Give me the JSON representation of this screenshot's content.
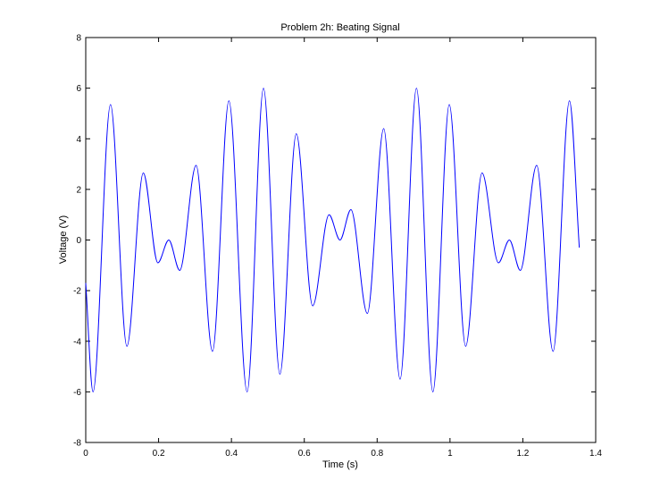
{
  "chart_data": {
    "type": "line",
    "title": "Problem 2h: Beating Signal",
    "xlabel": "Time (s)",
    "ylabel": "Voltage (V)",
    "xlim": [
      0,
      1.4
    ],
    "ylim": [
      -8,
      8
    ],
    "xticks": [
      0,
      0.2,
      0.4,
      0.6,
      0.8,
      1,
      1.2,
      1.4
    ],
    "xtick_labels": [
      "0",
      "0.2",
      "0.4",
      "0.6",
      "0.8",
      "1",
      "1.2",
      "1.4"
    ],
    "yticks": [
      -8,
      -6,
      -4,
      -2,
      0,
      2,
      4,
      6,
      8
    ],
    "ytick_labels": [
      "-8",
      "-6",
      "-4",
      "-2",
      "0",
      "2",
      "4",
      "6",
      "8"
    ],
    "grid": false,
    "legend": "none",
    "colors": {
      "series": "#0000ff",
      "axes": "#000000",
      "background": "#ffffff"
    },
    "series": [
      {
        "x": [
          0.0,
          0.02,
          0.068,
          0.113,
          0.158,
          0.198,
          0.228,
          0.258,
          0.303,
          0.348,
          0.393,
          0.443,
          0.488,
          0.533,
          0.578,
          0.623,
          0.668,
          0.698,
          0.728,
          0.773,
          0.818,
          0.863,
          0.908,
          0.953,
          0.998,
          1.043,
          1.088,
          1.133,
          1.163,
          1.193,
          1.238,
          1.283,
          1.328,
          1.355
        ],
        "values": [
          -1.7,
          -6.0,
          5.35,
          -4.2,
          2.65,
          -0.9,
          0.0,
          -1.2,
          2.95,
          -4.4,
          5.5,
          -6.0,
          6.0,
          -5.3,
          4.2,
          -2.6,
          1.0,
          0.0,
          1.2,
          -2.9,
          4.4,
          -5.5,
          6.0,
          -6.0,
          5.35,
          -4.2,
          2.65,
          -0.9,
          0.0,
          -1.2,
          2.95,
          -4.4,
          5.5,
          -0.3
        ]
      }
    ]
  }
}
